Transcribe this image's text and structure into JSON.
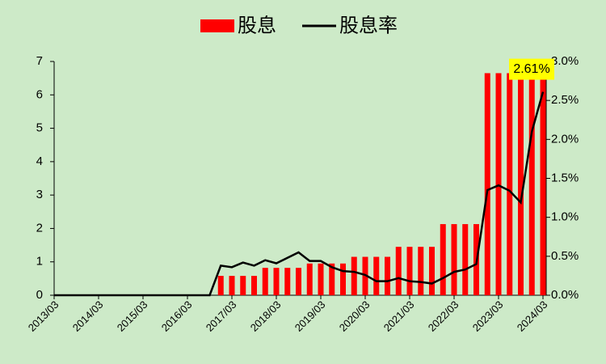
{
  "chart_data": {
    "type": "bar-line",
    "categories": [
      "2013/03",
      null,
      null,
      null,
      "2014/03",
      null,
      null,
      null,
      "2015/03",
      null,
      null,
      null,
      "2016/03",
      null,
      null,
      null,
      "2017/03",
      null,
      null,
      null,
      "2018/03",
      null,
      null,
      null,
      "2019/03",
      null,
      null,
      null,
      "2020/03",
      null,
      null,
      null,
      "2021/03",
      null,
      null,
      null,
      "2022/03",
      null,
      null,
      null,
      "2023/03",
      null,
      null,
      null,
      "2024/03"
    ],
    "series": [
      {
        "name": "股息",
        "type": "bar",
        "color": "#ff0000",
        "values": [
          0,
          0,
          0,
          0,
          0,
          0,
          0,
          0,
          0,
          0,
          0,
          0,
          0,
          0,
          0,
          0.58,
          0.58,
          0.58,
          0.58,
          0.82,
          0.82,
          0.82,
          0.82,
          0.95,
          0.95,
          0.95,
          0.95,
          1.15,
          1.15,
          1.15,
          1.15,
          1.45,
          1.45,
          1.45,
          1.45,
          2.13,
          2.13,
          2.13,
          2.13,
          6.65,
          6.65,
          6.65,
          6.65,
          6.65,
          6.65
        ]
      },
      {
        "name": "股息率",
        "type": "line",
        "axis": "y2",
        "color": "#000000",
        "values": [
          0,
          0,
          0,
          0,
          0,
          0,
          0,
          0,
          0,
          0,
          0,
          0,
          0,
          0,
          0,
          0.38,
          0.36,
          0.42,
          0.38,
          0.45,
          0.41,
          0.48,
          0.55,
          0.44,
          0.44,
          0.36,
          0.31,
          0.3,
          0.26,
          0.18,
          0.18,
          0.22,
          0.18,
          0.17,
          0.15,
          0.22,
          0.3,
          0.33,
          0.4,
          1.35,
          1.41,
          1.34,
          1.19,
          2.1,
          2.61
        ],
        "value_labels": [
          null,
          null,
          null,
          null,
          null,
          null,
          null,
          null,
          null,
          null,
          null,
          null,
          null,
          null,
          null,
          null,
          null,
          null,
          null,
          null,
          null,
          null,
          null,
          null,
          null,
          null,
          null,
          null,
          null,
          null,
          null,
          null,
          null,
          null,
          null,
          null,
          null,
          null,
          null,
          null,
          null,
          null,
          null,
          null,
          "2.61%"
        ]
      }
    ],
    "ylim": [
      0,
      7
    ],
    "yticks": [
      0,
      1,
      2,
      3,
      4,
      5,
      6,
      7
    ],
    "y2lim": [
      0,
      3
    ],
    "y2ticks": [
      {
        "value": 0,
        "label": "0.0%"
      },
      {
        "value": 0.5,
        "label": "0.5%"
      },
      {
        "value": 1,
        "label": "1.0%"
      },
      {
        "value": 1.5,
        "label": "1.5%"
      },
      {
        "value": 2,
        "label": "2.0%"
      },
      {
        "value": 2.5,
        "label": "2.5%"
      },
      {
        "value": 3,
        "label": "3.0%"
      }
    ],
    "legend": "top"
  }
}
